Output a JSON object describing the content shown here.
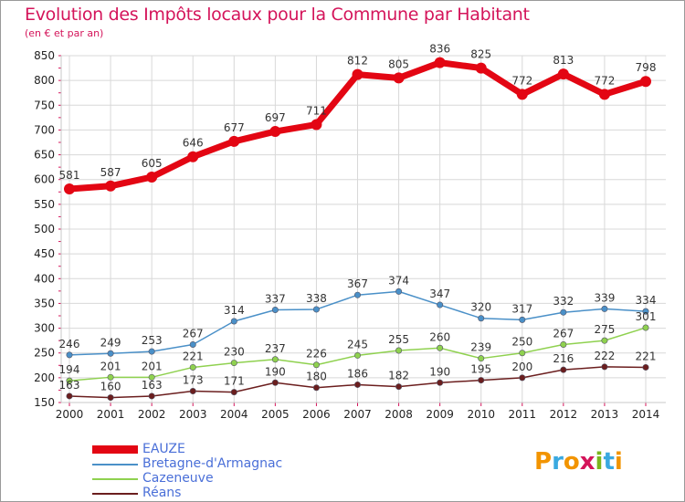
{
  "header": {
    "title": "Evolution des Impôts locaux pour la Commune par Habitant",
    "subtitle": "(en € et par an)"
  },
  "colors": {
    "title": "#d4145a",
    "legend_text": "#4a6fd8",
    "grid": "#d8d8d8",
    "axis": "#c8c8c8",
    "tick_minor": "#d4145a"
  },
  "logo": {
    "text": "Proxiti",
    "letter_colors": [
      "#f29400",
      "#3aa9e0",
      "#f29400",
      "#d4145a",
      "#7ab51d",
      "#3aa9e0",
      "#f29400"
    ]
  },
  "chart_data": {
    "type": "line",
    "x": [
      2000,
      2001,
      2002,
      2003,
      2004,
      2005,
      2006,
      2007,
      2008,
      2009,
      2010,
      2011,
      2012,
      2013,
      2014
    ],
    "ylim": [
      150,
      850
    ],
    "yticks": [
      150,
      200,
      250,
      300,
      350,
      400,
      450,
      500,
      550,
      600,
      650,
      700,
      750,
      800,
      850
    ],
    "grid": true,
    "legend_position": "bottom-left",
    "series": [
      {
        "name": "EAUZE",
        "color": "#e30613",
        "values": [
          581,
          587,
          605,
          646,
          677,
          697,
          711,
          812,
          805,
          836,
          825,
          772,
          813,
          772,
          798
        ]
      },
      {
        "name": "Bretagne-d'Armagnac",
        "color": "#4a90c8",
        "values": [
          246,
          249,
          253,
          267,
          314,
          337,
          338,
          367,
          374,
          347,
          320,
          317,
          332,
          339,
          334
        ]
      },
      {
        "name": "Cazeneuve",
        "color": "#8fd14f",
        "values": [
          194,
          201,
          201,
          221,
          230,
          237,
          226,
          245,
          255,
          260,
          239,
          250,
          267,
          275,
          301
        ]
      },
      {
        "name": "Réans",
        "color": "#6b1e1e",
        "values": [
          163,
          160,
          163,
          173,
          171,
          190,
          180,
          186,
          182,
          190,
          195,
          200,
          216,
          222,
          221
        ]
      }
    ]
  }
}
